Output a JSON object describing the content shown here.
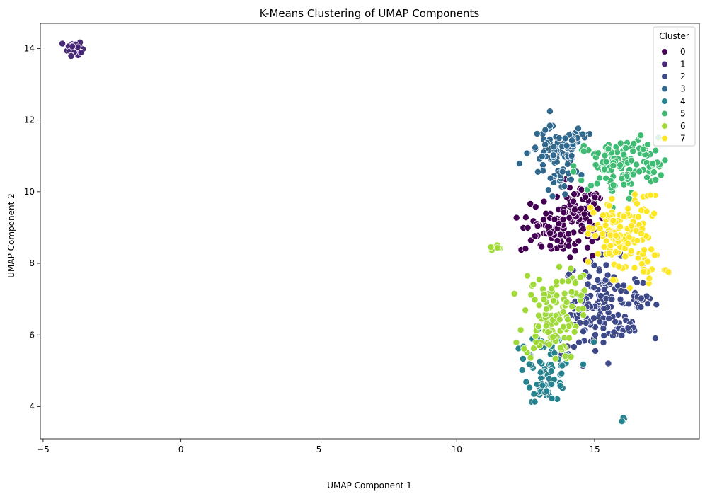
{
  "chart_data": {
    "type": "scatter",
    "title": "K-Means Clustering of UMAP Components",
    "xlabel": "UMAP Component 1",
    "ylabel": "UMAP Component 2",
    "xlim": [
      -5.1,
      18.8
    ],
    "ylim": [
      3.1,
      14.7
    ],
    "xticks": [
      -5,
      0,
      5,
      10,
      15
    ],
    "yticks": [
      4,
      6,
      8,
      10,
      12,
      14
    ],
    "grid": false,
    "legend": {
      "title": "Cluster",
      "placement": "top-right"
    },
    "series": [
      {
        "name": "0",
        "color": "#440154",
        "regions": [
          {
            "cx": 14.3,
            "cy": 9.1,
            "sx": 0.55,
            "sy": 0.5,
            "n": 90
          },
          {
            "cx": 13.2,
            "cy": 8.9,
            "sx": 0.45,
            "sy": 0.35,
            "n": 40
          },
          {
            "cx": 14.6,
            "cy": 9.8,
            "sx": 0.35,
            "sy": 0.25,
            "n": 20
          }
        ]
      },
      {
        "name": "1",
        "color": "#482878",
        "regions": [
          {
            "cx": -3.85,
            "cy": 14.02,
            "sx": 0.13,
            "sy": 0.1,
            "n": 40
          }
        ]
      },
      {
        "name": "2",
        "color": "#3e4989",
        "regions": [
          {
            "cx": 15.3,
            "cy": 7.0,
            "sx": 0.7,
            "sy": 0.55,
            "n": 120
          },
          {
            "cx": 14.6,
            "cy": 6.1,
            "sx": 0.4,
            "sy": 0.35,
            "n": 25
          },
          {
            "cx": 16.1,
            "cy": 6.2,
            "sx": 0.25,
            "sy": 0.2,
            "n": 12
          },
          {
            "cx": 16.7,
            "cy": 7.0,
            "sx": 0.25,
            "sy": 0.2,
            "n": 10
          }
        ]
      },
      {
        "name": "3",
        "color": "#31688e",
        "regions": [
          {
            "cx": 13.6,
            "cy": 11.1,
            "sx": 0.5,
            "sy": 0.35,
            "n": 70
          },
          {
            "cx": 14.3,
            "cy": 11.4,
            "sx": 0.35,
            "sy": 0.15,
            "n": 20
          },
          {
            "cx": 13.8,
            "cy": 10.3,
            "sx": 0.3,
            "sy": 0.25,
            "n": 20
          }
        ]
      },
      {
        "name": "4",
        "color": "#26828e",
        "regions": [
          {
            "cx": 13.3,
            "cy": 4.75,
            "sx": 0.35,
            "sy": 0.3,
            "n": 50
          },
          {
            "cx": 13.4,
            "cy": 5.6,
            "sx": 0.5,
            "sy": 0.25,
            "n": 25
          },
          {
            "cx": 12.5,
            "cy": 5.3,
            "sx": 0.15,
            "sy": 0.25,
            "n": 8
          },
          {
            "cx": 16.05,
            "cy": 3.64,
            "sx": 0.05,
            "sy": 0.03,
            "n": 5
          }
        ]
      },
      {
        "name": "5",
        "color": "#3fbc73",
        "regions": [
          {
            "cx": 15.8,
            "cy": 10.7,
            "sx": 0.75,
            "sy": 0.4,
            "n": 110
          },
          {
            "cx": 16.7,
            "cy": 11.2,
            "sx": 0.3,
            "sy": 0.2,
            "n": 15
          },
          {
            "cx": 17.1,
            "cy": 10.7,
            "sx": 0.2,
            "sy": 0.25,
            "n": 10
          }
        ]
      },
      {
        "name": "6",
        "color": "#a0da39",
        "regions": [
          {
            "cx": 13.4,
            "cy": 6.5,
            "sx": 0.5,
            "sy": 0.6,
            "n": 110
          },
          {
            "cx": 14.2,
            "cy": 7.5,
            "sx": 0.3,
            "sy": 0.2,
            "n": 10
          },
          {
            "cx": 11.4,
            "cy": 8.42,
            "sx": 0.1,
            "sy": 0.06,
            "n": 8
          }
        ]
      },
      {
        "name": "7",
        "color": "#fde725",
        "regions": [
          {
            "cx": 16.0,
            "cy": 8.75,
            "sx": 0.55,
            "sy": 0.55,
            "n": 130
          },
          {
            "cx": 17.0,
            "cy": 9.4,
            "sx": 0.2,
            "sy": 0.3,
            "n": 8
          },
          {
            "cx": 17.65,
            "cy": 7.8,
            "sx": 0.06,
            "sy": 0.04,
            "n": 4
          },
          {
            "cx": 16.9,
            "cy": 7.7,
            "sx": 0.2,
            "sy": 0.15,
            "n": 6
          }
        ]
      }
    ]
  }
}
